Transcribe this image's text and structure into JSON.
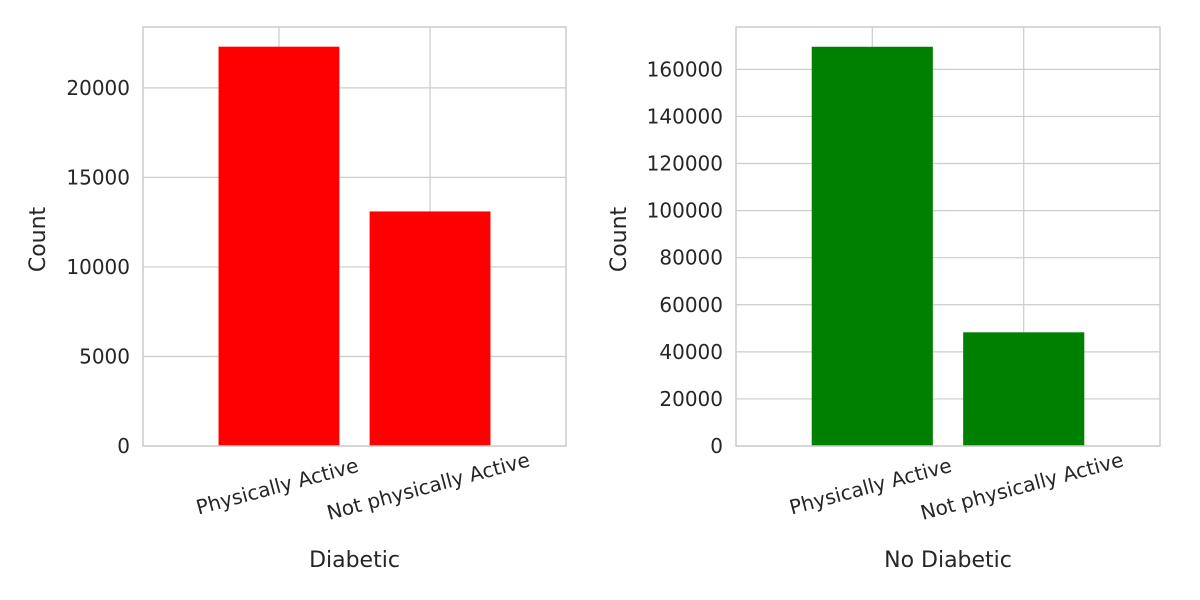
{
  "chart_data": [
    {
      "type": "bar",
      "title": "",
      "xlabel": "Diabetic",
      "ylabel": "Count",
      "categories": [
        "Physically Active",
        "Not physically Active"
      ],
      "values": [
        22300,
        13100
      ],
      "ylim": [
        0,
        23400
      ],
      "yticks": [
        0,
        5000,
        10000,
        15000,
        20000
      ],
      "ytick_labels": [
        "0",
        "5000",
        "10000",
        "15000",
        "20000"
      ],
      "bar_color": "#ff0000",
      "grid": true
    },
    {
      "type": "bar",
      "title": "",
      "xlabel": "No Diabetic",
      "ylabel": "Count",
      "categories": [
        "Physically Active",
        "Not physically Active"
      ],
      "values": [
        169600,
        48300
      ],
      "ylim": [
        0,
        178000
      ],
      "yticks": [
        0,
        20000,
        40000,
        60000,
        80000,
        100000,
        120000,
        140000,
        160000
      ],
      "ytick_labels": [
        "0",
        "20000",
        "40000",
        "60000",
        "80000",
        "100000",
        "120000",
        "140000",
        "160000"
      ],
      "bar_color": "#008000",
      "grid": true
    }
  ]
}
